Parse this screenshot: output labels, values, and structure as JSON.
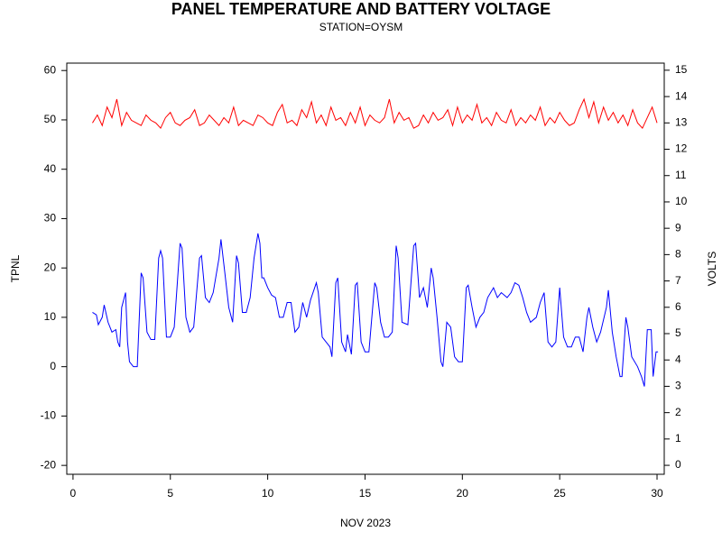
{
  "chart_data": {
    "type": "line",
    "title": "PANEL TEMPERATURE AND BATTERY VOLTAGE",
    "subtitle": "STATION=OYSM",
    "x_label": "NOV 2023",
    "y_label": "TPNL",
    "y2_label": "VOLTS",
    "xlim": [
      -0.32,
      30.37
    ],
    "xticks": [
      0,
      5,
      10,
      15,
      20,
      25,
      30
    ],
    "ylim": [
      -21.8,
      61.5
    ],
    "yticks": [
      -20,
      -10,
      0,
      10,
      20,
      30,
      40,
      50,
      60
    ],
    "y2lim": [
      -0.34,
      15.27
    ],
    "y2ticks": [
      0,
      1,
      2,
      3,
      4,
      5,
      6,
      7,
      8,
      9,
      10,
      11,
      12,
      13,
      14,
      15
    ],
    "series": [
      {
        "name": "TPNL",
        "color": "#0000ff",
        "x": [
          1.0,
          1.2,
          1.3,
          1.5,
          1.6,
          1.8,
          2.0,
          2.2,
          2.3,
          2.4,
          2.5,
          2.7,
          2.8,
          2.9,
          3.1,
          3.3,
          3.5,
          3.6,
          3.8,
          4.0,
          4.2,
          4.4,
          4.5,
          4.6,
          4.8,
          5.0,
          5.2,
          5.5,
          5.6,
          5.8,
          6.0,
          6.2,
          6.5,
          6.6,
          6.8,
          7.0,
          7.2,
          7.5,
          7.6,
          7.8,
          8.0,
          8.2,
          8.4,
          8.5,
          8.7,
          8.9,
          9.1,
          9.3,
          9.5,
          9.6,
          9.7,
          9.8,
          10.0,
          10.2,
          10.4,
          10.6,
          10.8,
          11.0,
          11.2,
          11.4,
          11.6,
          11.8,
          12.0,
          12.2,
          12.5,
          12.6,
          12.8,
          13.0,
          13.2,
          13.3,
          13.5,
          13.6,
          13.8,
          14.0,
          14.1,
          14.3,
          14.5,
          14.6,
          14.8,
          15.0,
          15.2,
          15.5,
          15.6,
          15.8,
          16.0,
          16.2,
          16.4,
          16.6,
          16.7,
          16.9,
          17.2,
          17.5,
          17.6,
          17.8,
          18.0,
          18.2,
          18.4,
          18.5,
          18.7,
          18.9,
          19.0,
          19.2,
          19.4,
          19.6,
          19.8,
          20.0,
          20.2,
          20.3,
          20.5,
          20.7,
          20.9,
          21.1,
          21.3,
          21.6,
          21.8,
          22.0,
          22.3,
          22.5,
          22.7,
          22.9,
          23.1,
          23.3,
          23.5,
          23.8,
          24.0,
          24.2,
          24.4,
          24.6,
          24.8,
          25.0,
          25.2,
          25.4,
          25.6,
          25.8,
          26.0,
          26.2,
          26.4,
          26.5,
          26.7,
          26.9,
          27.1,
          27.4,
          27.5,
          27.7,
          27.9,
          28.1,
          28.2,
          28.4,
          28.5,
          28.7,
          29.0,
          29.2,
          29.35,
          29.5,
          29.7,
          29.8,
          29.95,
          30.05
        ],
        "values": [
          11,
          10.5,
          8.5,
          10,
          12.5,
          9,
          7,
          7.5,
          5,
          4,
          12,
          15,
          5,
          1,
          0,
          0,
          19,
          18,
          7,
          5.5,
          5.5,
          22,
          23.5,
          22,
          6,
          6,
          8,
          25,
          24,
          10,
          7,
          8,
          22,
          22.5,
          14,
          13,
          15,
          22,
          25.8,
          19,
          12,
          9,
          22.5,
          21,
          11,
          11,
          14,
          22,
          27,
          25,
          18,
          18,
          16,
          14.5,
          14,
          10,
          10,
          13,
          13,
          7,
          8,
          13,
          10,
          13.5,
          17,
          15,
          6,
          5,
          4,
          2,
          17,
          18,
          5,
          3,
          6.5,
          2.5,
          16.5,
          17,
          5,
          3,
          3,
          17,
          16,
          9,
          6,
          6,
          7,
          24.5,
          22,
          9,
          8.5,
          24.5,
          25,
          14,
          16,
          12,
          20,
          18,
          10,
          1,
          0,
          9,
          8,
          2,
          1,
          1,
          16,
          16.5,
          12,
          8,
          10,
          11,
          14,
          16,
          14,
          15,
          14,
          15,
          17,
          16.5,
          14,
          11,
          9,
          10,
          13,
          15,
          5,
          4,
          5,
          16,
          6,
          4,
          4,
          6,
          6,
          3,
          10,
          12,
          8,
          5,
          7,
          12,
          15.5,
          7,
          2,
          -2,
          -2,
          10,
          8,
          2,
          0,
          -2,
          -4,
          7.5,
          7.5,
          -2,
          3,
          3
        ]
      },
      {
        "name": "VOLTS",
        "color": "#ff0000",
        "axis": "y2",
        "x": [
          1,
          1.25,
          1.5,
          1.75,
          2,
          2.25,
          2.5,
          2.75,
          3,
          3.25,
          3.5,
          3.75,
          4,
          4.25,
          4.5,
          4.75,
          5,
          5.25,
          5.5,
          5.75,
          6,
          6.25,
          6.5,
          6.75,
          7,
          7.25,
          7.5,
          7.75,
          8,
          8.25,
          8.5,
          8.75,
          9,
          9.25,
          9.5,
          9.75,
          10,
          10.25,
          10.5,
          10.75,
          11,
          11.25,
          11.5,
          11.75,
          12,
          12.25,
          12.5,
          12.75,
          13,
          13.25,
          13.5,
          13.75,
          14,
          14.25,
          14.5,
          14.75,
          15,
          15.25,
          15.5,
          15.75,
          16,
          16.25,
          16.5,
          16.75,
          17,
          17.25,
          17.5,
          17.75,
          18,
          18.25,
          18.5,
          18.75,
          19,
          19.25,
          19.5,
          19.75,
          20,
          20.25,
          20.5,
          20.75,
          21,
          21.25,
          21.5,
          21.75,
          22,
          22.25,
          22.5,
          22.75,
          23,
          23.25,
          23.5,
          23.75,
          24,
          24.25,
          24.5,
          24.75,
          25,
          25.25,
          25.5,
          25.75,
          26,
          26.25,
          26.5,
          26.75,
          27,
          27.25,
          27.5,
          27.75,
          28,
          28.25,
          28.5,
          28.75,
          29,
          29.25,
          29.5,
          29.75,
          30
        ],
        "values": [
          13.0,
          13.3,
          12.9,
          13.6,
          13.2,
          13.9,
          12.9,
          13.4,
          13.1,
          13.0,
          12.9,
          13.3,
          13.1,
          13.0,
          12.8,
          13.2,
          13.4,
          13.0,
          12.9,
          13.1,
          13.2,
          13.5,
          12.9,
          13.0,
          13.3,
          13.1,
          12.9,
          13.2,
          13.0,
          13.6,
          12.9,
          13.1,
          13.0,
          12.9,
          13.3,
          13.2,
          13.0,
          12.9,
          13.4,
          13.7,
          13.0,
          13.1,
          12.9,
          13.5,
          13.2,
          13.8,
          13.0,
          13.3,
          12.9,
          13.6,
          13.1,
          13.2,
          12.9,
          13.4,
          13.0,
          13.6,
          12.9,
          13.3,
          13.1,
          13.0,
          13.2,
          13.9,
          13.0,
          13.4,
          13.1,
          13.2,
          12.8,
          12.9,
          13.3,
          13.0,
          13.4,
          13.1,
          13.2,
          13.5,
          12.9,
          13.6,
          13.0,
          13.3,
          13.1,
          13.7,
          13.0,
          13.2,
          12.9,
          13.4,
          13.1,
          13.0,
          13.5,
          12.9,
          13.2,
          13.0,
          13.3,
          13.1,
          13.6,
          12.9,
          13.2,
          13.0,
          13.4,
          13.1,
          12.9,
          13.0,
          13.5,
          13.9,
          13.2,
          13.8,
          13.0,
          13.6,
          13.1,
          13.4,
          13.0,
          13.3,
          12.9,
          13.5,
          13.0,
          12.8,
          13.2,
          13.6,
          13.0
        ]
      }
    ]
  }
}
